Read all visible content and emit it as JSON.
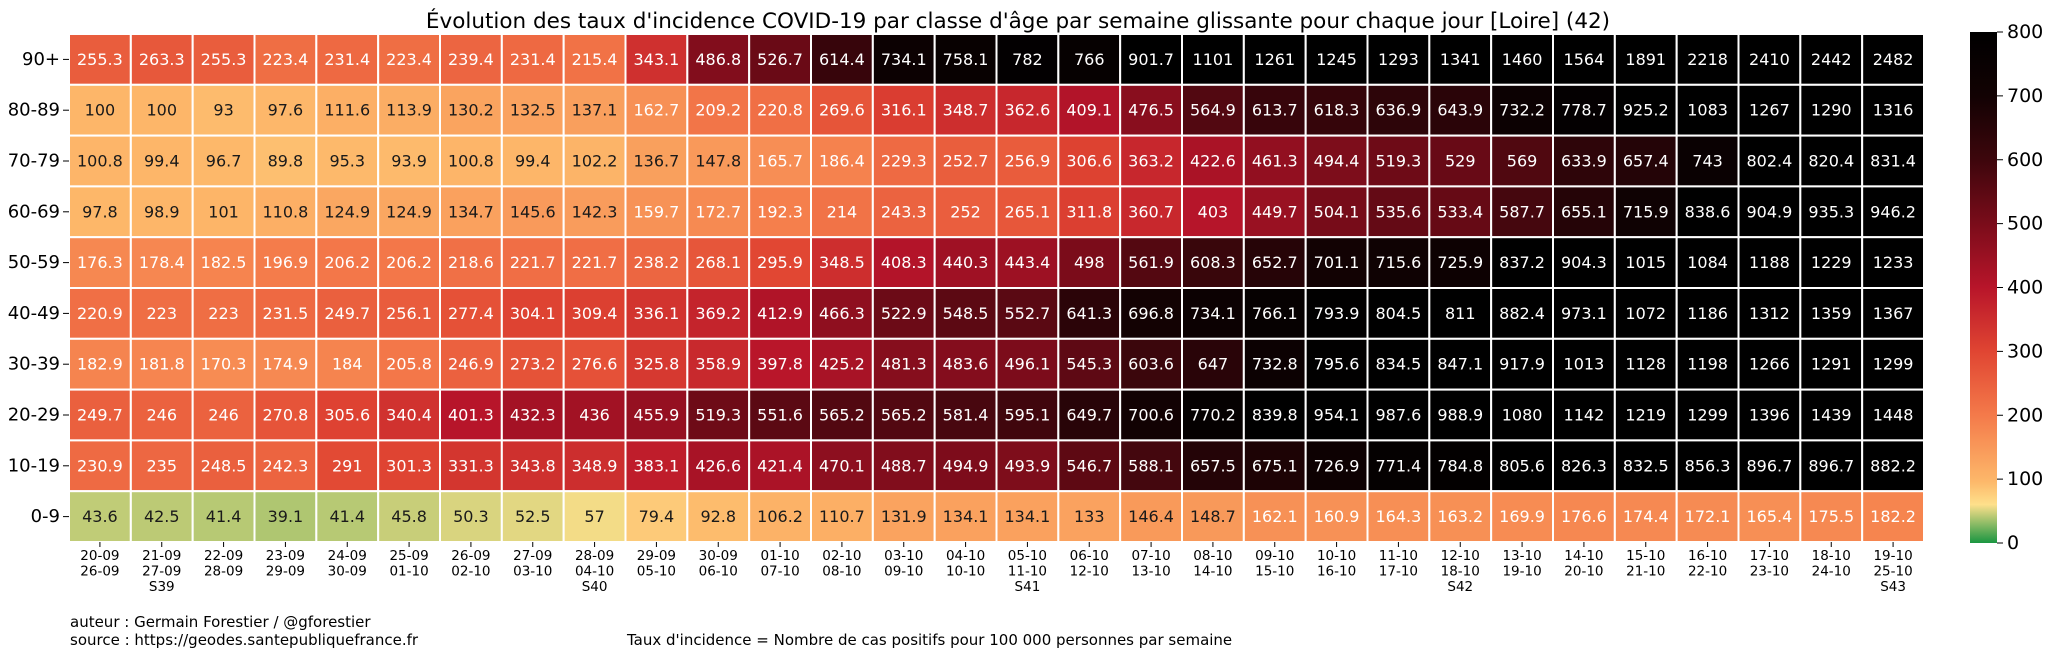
{
  "chart_data": {
    "type": "heatmap",
    "title": "Évolution des taux d'incidence COVID-19 par classe d'âge par semaine glissante pour chaque jour [Loire] (42)",
    "xlabel": "",
    "ylabel": "",
    "rows": [
      "90+",
      "80-89",
      "70-79",
      "60-69",
      "50-59",
      "40-49",
      "30-39",
      "20-29",
      "10-19",
      "0-9"
    ],
    "columns": [
      {
        "l1": "20-09",
        "l2": "26-09",
        "l3": ""
      },
      {
        "l1": "21-09",
        "l2": "27-09",
        "l3": "S39"
      },
      {
        "l1": "22-09",
        "l2": "28-09",
        "l3": ""
      },
      {
        "l1": "23-09",
        "l2": "29-09",
        "l3": ""
      },
      {
        "l1": "24-09",
        "l2": "30-09",
        "l3": ""
      },
      {
        "l1": "25-09",
        "l2": "01-10",
        "l3": ""
      },
      {
        "l1": "26-09",
        "l2": "02-10",
        "l3": ""
      },
      {
        "l1": "27-09",
        "l2": "03-10",
        "l3": ""
      },
      {
        "l1": "28-09",
        "l2": "04-10",
        "l3": "S40"
      },
      {
        "l1": "29-09",
        "l2": "05-10",
        "l3": ""
      },
      {
        "l1": "30-09",
        "l2": "06-10",
        "l3": ""
      },
      {
        "l1": "01-10",
        "l2": "07-10",
        "l3": ""
      },
      {
        "l1": "02-10",
        "l2": "08-10",
        "l3": ""
      },
      {
        "l1": "03-10",
        "l2": "09-10",
        "l3": ""
      },
      {
        "l1": "04-10",
        "l2": "10-10",
        "l3": ""
      },
      {
        "l1": "05-10",
        "l2": "11-10",
        "l3": "S41"
      },
      {
        "l1": "06-10",
        "l2": "12-10",
        "l3": ""
      },
      {
        "l1": "07-10",
        "l2": "13-10",
        "l3": ""
      },
      {
        "l1": "08-10",
        "l2": "14-10",
        "l3": ""
      },
      {
        "l1": "09-10",
        "l2": "15-10",
        "l3": ""
      },
      {
        "l1": "10-10",
        "l2": "16-10",
        "l3": ""
      },
      {
        "l1": "11-10",
        "l2": "17-10",
        "l3": ""
      },
      {
        "l1": "12-10",
        "l2": "18-10",
        "l3": "S42"
      },
      {
        "l1": "13-10",
        "l2": "19-10",
        "l3": ""
      },
      {
        "l1": "14-10",
        "l2": "20-10",
        "l3": ""
      },
      {
        "l1": "15-10",
        "l2": "21-10",
        "l3": ""
      },
      {
        "l1": "16-10",
        "l2": "22-10",
        "l3": ""
      },
      {
        "l1": "17-10",
        "l2": "23-10",
        "l3": ""
      },
      {
        "l1": "18-10",
        "l2": "24-10",
        "l3": ""
      },
      {
        "l1": "19-10",
        "l2": "25-10",
        "l3": "S43"
      }
    ],
    "values": [
      [
        255.3,
        263.3,
        255.3,
        223.4,
        231.4,
        223.4,
        239.4,
        231.4,
        215.4,
        343.1,
        486.8,
        526.7,
        614.4,
        734.1,
        758.1,
        782,
        766,
        901.7,
        1101,
        1261,
        1245,
        1293,
        1341,
        1460,
        1564,
        1891,
        2218,
        2410,
        2442,
        2482
      ],
      [
        100,
        100,
        93,
        97.6,
        111.6,
        113.9,
        130.2,
        132.5,
        137.1,
        162.7,
        209.2,
        220.8,
        269.6,
        316.1,
        348.7,
        362.6,
        409.1,
        476.5,
        564.9,
        613.7,
        618.3,
        636.9,
        643.9,
        732.2,
        778.7,
        925.2,
        1083,
        1267,
        1290,
        1316
      ],
      [
        100.8,
        99.4,
        96.7,
        89.8,
        95.3,
        93.9,
        100.8,
        99.4,
        102.2,
        136.7,
        147.8,
        165.7,
        186.4,
        229.3,
        252.7,
        256.9,
        306.6,
        363.2,
        422.6,
        461.3,
        494.4,
        519.3,
        529,
        569,
        633.9,
        657.4,
        743,
        802.4,
        820.4,
        831.4
      ],
      [
        97.8,
        98.9,
        101,
        110.8,
        124.9,
        124.9,
        134.7,
        145.6,
        142.3,
        159.7,
        172.7,
        192.3,
        214,
        243.3,
        252,
        265.1,
        311.8,
        360.7,
        403,
        449.7,
        504.1,
        535.6,
        533.4,
        587.7,
        655.1,
        715.9,
        838.6,
        904.9,
        935.3,
        946.2
      ],
      [
        176.3,
        178.4,
        182.5,
        196.9,
        206.2,
        206.2,
        218.6,
        221.7,
        221.7,
        238.2,
        268.1,
        295.9,
        348.5,
        408.3,
        440.3,
        443.4,
        498,
        561.9,
        608.3,
        652.7,
        701.1,
        715.6,
        725.9,
        837.2,
        904.3,
        1015,
        1084,
        1188,
        1229,
        1233
      ],
      [
        220.9,
        223,
        223,
        231.5,
        249.7,
        256.1,
        277.4,
        304.1,
        309.4,
        336.1,
        369.2,
        412.9,
        466.3,
        522.9,
        548.5,
        552.7,
        641.3,
        696.8,
        734.1,
        766.1,
        793.9,
        804.5,
        811,
        882.4,
        973.1,
        1072,
        1186,
        1312,
        1359,
        1367
      ],
      [
        182.9,
        181.8,
        170.3,
        174.9,
        184,
        205.8,
        246.9,
        273.2,
        276.6,
        325.8,
        358.9,
        397.8,
        425.2,
        481.3,
        483.6,
        496.1,
        545.3,
        603.6,
        647,
        732.8,
        795.6,
        834.5,
        847.1,
        917.9,
        1013,
        1128,
        1198,
        1266,
        1291,
        1299
      ],
      [
        249.7,
        246,
        246,
        270.8,
        305.6,
        340.4,
        401.3,
        432.3,
        436,
        455.9,
        519.3,
        551.6,
        565.2,
        565.2,
        581.4,
        595.1,
        649.7,
        700.6,
        770.2,
        839.8,
        954.1,
        987.6,
        988.9,
        1080,
        1142,
        1219,
        1299,
        1396,
        1439,
        1448
      ],
      [
        230.9,
        235,
        248.5,
        242.3,
        291,
        301.3,
        331.3,
        343.8,
        348.9,
        383.1,
        426.6,
        421.4,
        470.1,
        488.7,
        494.9,
        493.9,
        546.7,
        588.1,
        657.5,
        675.1,
        726.9,
        771.4,
        784.8,
        805.6,
        826.3,
        832.5,
        856.3,
        896.7,
        896.7,
        882.2
      ],
      [
        43.6,
        42.5,
        41.4,
        39.1,
        41.4,
        45.8,
        50.3,
        52.5,
        57,
        79.4,
        92.8,
        106.2,
        110.7,
        131.9,
        134.1,
        134.1,
        133,
        146.4,
        148.7,
        162.1,
        160.9,
        164.3,
        163.2,
        169.9,
        176.6,
        174.4,
        172.1,
        165.4,
        175.5,
        182.2
      ]
    ],
    "colorbar": {
      "min": 0,
      "max": 800,
      "ticks": [
        0,
        100,
        200,
        300,
        400,
        500,
        600,
        700,
        800
      ],
      "colormap": "RdYlGn_r-to-black"
    }
  },
  "footer": {
    "author": "auteur : Germain Forestier / @gforestier",
    "source": "source : https://geodes.santepubliquefrance.fr",
    "definition": "Taux d'incidence = Nombre de cas positifs pour 100 000 personnes par semaine"
  }
}
